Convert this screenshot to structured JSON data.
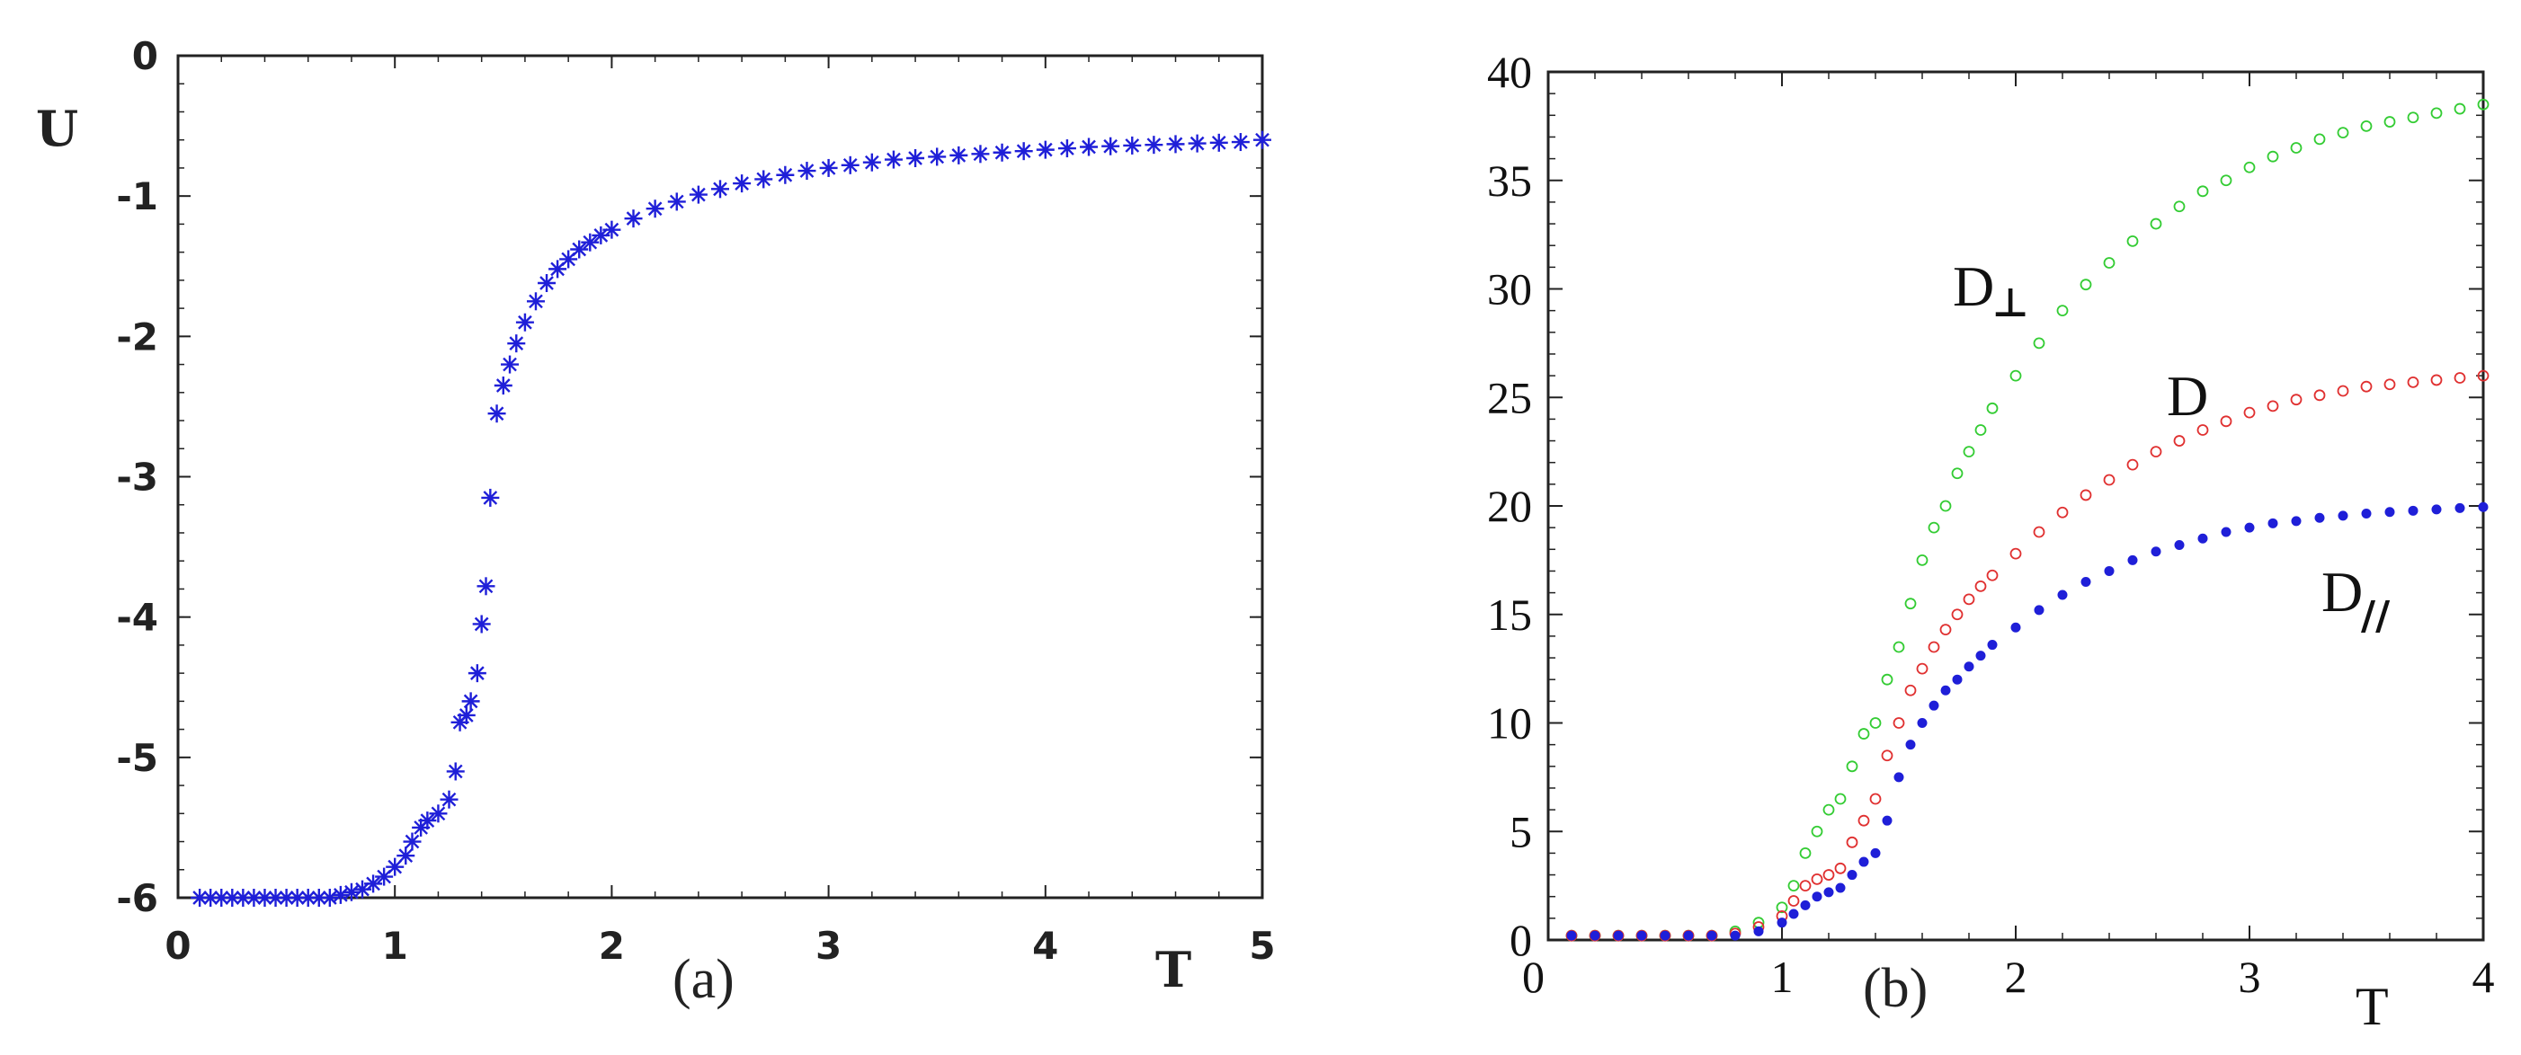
{
  "chart_data": [
    {
      "type": "scatter",
      "panel_label": "(a)",
      "xlabel": "T",
      "ylabel": "U",
      "xlim": [
        0,
        5
      ],
      "ylim": [
        -6,
        0
      ],
      "xticks": [
        "0",
        "1",
        "2",
        "3",
        "4",
        "5"
      ],
      "yticks": [
        "0",
        "-1",
        "-2",
        "-3",
        "-4",
        "-5",
        "-6"
      ],
      "marker": "asterisk",
      "colors": {
        "points": "#1f1fd8"
      },
      "grid": false,
      "series": [
        {
          "x": [
            0.1,
            0.15,
            0.2,
            0.25,
            0.3,
            0.35,
            0.4,
            0.45,
            0.5,
            0.55,
            0.6,
            0.65,
            0.7,
            0.75,
            0.8,
            0.85,
            0.9,
            0.95,
            1.0,
            1.05,
            1.08,
            1.12,
            1.15,
            1.2,
            1.25,
            1.28,
            1.3,
            1.33,
            1.35,
            1.38,
            1.4,
            1.42,
            1.44,
            1.47,
            1.5,
            1.53,
            1.56,
            1.6,
            1.65,
            1.7,
            1.75,
            1.8,
            1.85,
            1.9,
            1.95,
            2.0,
            2.1,
            2.2,
            2.3,
            2.4,
            2.5,
            2.6,
            2.7,
            2.8,
            2.9,
            3.0,
            3.1,
            3.2,
            3.3,
            3.4,
            3.5,
            3.6,
            3.7,
            3.8,
            3.9,
            4.0,
            4.1,
            4.2,
            4.3,
            4.4,
            4.5,
            4.6,
            4.7,
            4.8,
            4.9,
            5.0
          ],
          "y": [
            -6.0,
            -6.0,
            -6.0,
            -6.0,
            -6.0,
            -6.0,
            -6.0,
            -6.0,
            -6.0,
            -6.0,
            -6.0,
            -6.0,
            -6.0,
            -5.98,
            -5.96,
            -5.94,
            -5.9,
            -5.85,
            -5.78,
            -5.7,
            -5.6,
            -5.5,
            -5.45,
            -5.4,
            -5.3,
            -5.1,
            -4.75,
            -4.7,
            -4.6,
            -4.4,
            -4.05,
            -3.78,
            -3.15,
            -2.55,
            -2.35,
            -2.2,
            -2.05,
            -1.9,
            -1.75,
            -1.62,
            -1.52,
            -1.45,
            -1.38,
            -1.33,
            -1.28,
            -1.24,
            -1.16,
            -1.09,
            -1.04,
            -0.99,
            -0.95,
            -0.91,
            -0.88,
            -0.85,
            -0.82,
            -0.8,
            -0.78,
            -0.76,
            -0.74,
            -0.73,
            -0.72,
            -0.71,
            -0.7,
            -0.69,
            -0.68,
            -0.67,
            -0.66,
            -0.65,
            -0.645,
            -0.64,
            -0.635,
            -0.63,
            -0.625,
            -0.62,
            -0.615,
            -0.6
          ]
        }
      ]
    },
    {
      "type": "scatter",
      "panel_label": "(b)",
      "xlabel": "T",
      "ylabel": "",
      "xlim": [
        0,
        4
      ],
      "ylim": [
        0,
        40
      ],
      "xticks": [
        "0",
        "1",
        "2",
        "3",
        "4"
      ],
      "yticks": [
        "0",
        "5",
        "10",
        "15",
        "20",
        "25",
        "30",
        "35",
        "40"
      ],
      "grid": false,
      "series": [
        {
          "name": "D⊥",
          "label_main": "D",
          "label_sub": "⊥",
          "color": "#33cc33",
          "marker": "open-circle",
          "x": [
            0.1,
            0.2,
            0.3,
            0.4,
            0.5,
            0.6,
            0.7,
            0.8,
            0.9,
            1.0,
            1.05,
            1.1,
            1.15,
            1.2,
            1.25,
            1.3,
            1.35,
            1.4,
            1.45,
            1.5,
            1.55,
            1.6,
            1.65,
            1.7,
            1.75,
            1.8,
            1.85,
            1.9,
            2.0,
            2.1,
            2.2,
            2.3,
            2.4,
            2.5,
            2.6,
            2.7,
            2.8,
            2.9,
            3.0,
            3.1,
            3.2,
            3.3,
            3.4,
            3.5,
            3.6,
            3.7,
            3.8,
            3.9,
            4.0
          ],
          "y": [
            0.2,
            0.2,
            0.2,
            0.2,
            0.2,
            0.2,
            0.2,
            0.4,
            0.8,
            1.5,
            2.5,
            4.0,
            5.0,
            6.0,
            6.5,
            8.0,
            9.5,
            10.0,
            12.0,
            13.5,
            15.5,
            17.5,
            19.0,
            20.0,
            21.5,
            22.5,
            23.5,
            24.5,
            26.0,
            27.5,
            29.0,
            30.2,
            31.2,
            32.2,
            33.0,
            33.8,
            34.5,
            35.0,
            35.6,
            36.1,
            36.5,
            36.9,
            37.2,
            37.5,
            37.7,
            37.9,
            38.1,
            38.3,
            38.5
          ]
        },
        {
          "name": "D",
          "label_main": "D",
          "label_sub": "",
          "color": "#e03030",
          "marker": "open-circle",
          "x": [
            0.1,
            0.2,
            0.3,
            0.4,
            0.5,
            0.6,
            0.7,
            0.8,
            0.9,
            1.0,
            1.05,
            1.1,
            1.15,
            1.2,
            1.25,
            1.3,
            1.35,
            1.4,
            1.45,
            1.5,
            1.55,
            1.6,
            1.65,
            1.7,
            1.75,
            1.8,
            1.85,
            1.9,
            2.0,
            2.1,
            2.2,
            2.3,
            2.4,
            2.5,
            2.6,
            2.7,
            2.8,
            2.9,
            3.0,
            3.1,
            3.2,
            3.3,
            3.4,
            3.5,
            3.6,
            3.7,
            3.8,
            3.9,
            4.0
          ],
          "y": [
            0.2,
            0.2,
            0.2,
            0.2,
            0.2,
            0.2,
            0.2,
            0.3,
            0.6,
            1.1,
            1.8,
            2.5,
            2.8,
            3.0,
            3.3,
            4.5,
            5.5,
            6.5,
            8.5,
            10.0,
            11.5,
            12.5,
            13.5,
            14.3,
            15.0,
            15.7,
            16.3,
            16.8,
            17.8,
            18.8,
            19.7,
            20.5,
            21.2,
            21.9,
            22.5,
            23.0,
            23.5,
            23.9,
            24.3,
            24.6,
            24.9,
            25.1,
            25.3,
            25.5,
            25.6,
            25.7,
            25.8,
            25.9,
            26.0
          ]
        },
        {
          "name": "D//",
          "label_main": "D",
          "label_sub": "//",
          "color": "#1f1fd8",
          "marker": "filled-circle",
          "x": [
            0.1,
            0.2,
            0.3,
            0.4,
            0.5,
            0.6,
            0.7,
            0.8,
            0.9,
            1.0,
            1.05,
            1.1,
            1.15,
            1.2,
            1.25,
            1.3,
            1.35,
            1.4,
            1.45,
            1.5,
            1.55,
            1.6,
            1.65,
            1.7,
            1.75,
            1.8,
            1.85,
            1.9,
            2.0,
            2.1,
            2.2,
            2.3,
            2.4,
            2.5,
            2.6,
            2.7,
            2.8,
            2.9,
            3.0,
            3.1,
            3.2,
            3.3,
            3.4,
            3.5,
            3.6,
            3.7,
            3.8,
            3.9,
            4.0
          ],
          "y": [
            0.2,
            0.2,
            0.2,
            0.2,
            0.2,
            0.2,
            0.2,
            0.2,
            0.4,
            0.8,
            1.2,
            1.6,
            2.0,
            2.2,
            2.4,
            3.0,
            3.6,
            4.0,
            5.5,
            7.5,
            9.0,
            10.0,
            10.8,
            11.5,
            12.0,
            12.6,
            13.1,
            13.6,
            14.4,
            15.2,
            15.9,
            16.5,
            17.0,
            17.5,
            17.9,
            18.2,
            18.5,
            18.8,
            19.0,
            19.2,
            19.3,
            19.45,
            19.55,
            19.65,
            19.72,
            19.78,
            19.84,
            19.9,
            19.95
          ]
        }
      ]
    }
  ]
}
